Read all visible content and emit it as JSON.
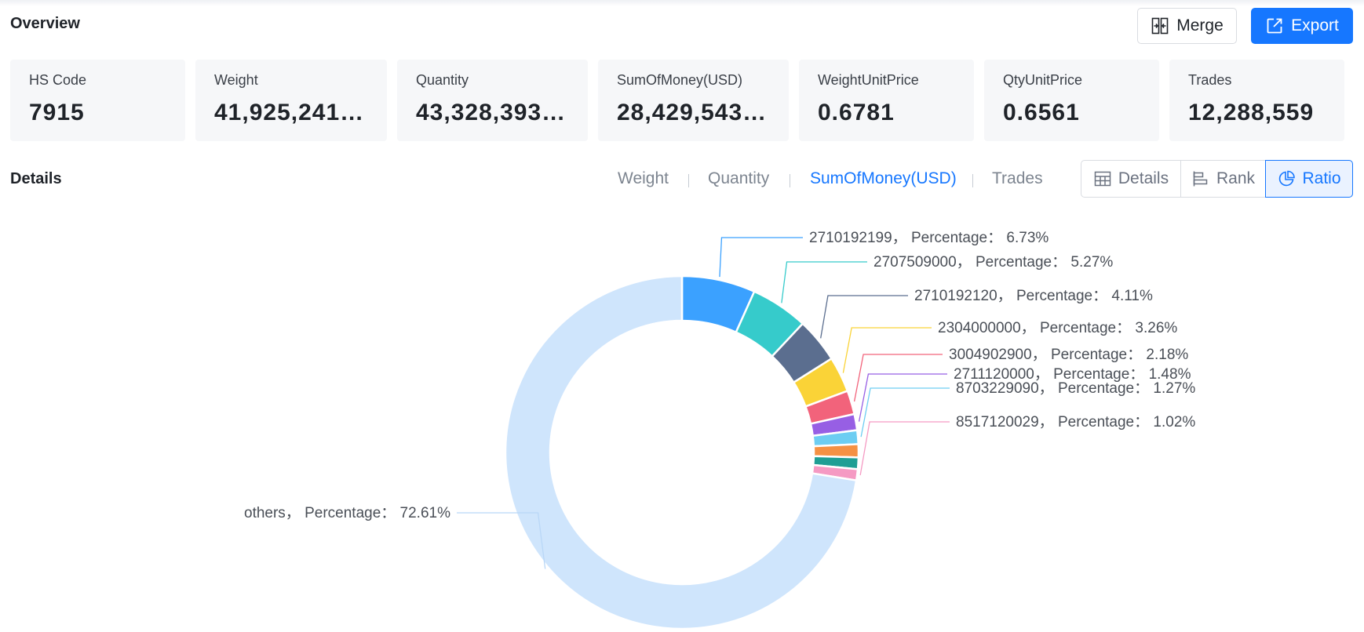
{
  "overview": {
    "title": "Overview"
  },
  "toolbar": {
    "merge_label": "Merge",
    "export_label": "Export"
  },
  "stats": [
    {
      "label": "HS Code",
      "value": "7915"
    },
    {
      "label": "Weight",
      "value": "41,925,241,..."
    },
    {
      "label": "Quantity",
      "value": "43,328,393,..."
    },
    {
      "label": "SumOfMoney(USD)",
      "value": "28,429,543,..."
    },
    {
      "label": "WeightUnitPrice",
      "value": "0.6781"
    },
    {
      "label": "QtyUnitPrice",
      "value": "0.6561"
    },
    {
      "label": "Trades",
      "value": "12,288,559"
    }
  ],
  "details": {
    "title": "Details",
    "metric_tabs": [
      "Weight",
      "Quantity",
      "SumOfMoney(USD)",
      "Trades"
    ],
    "active_metric": "SumOfMoney(USD)",
    "views": [
      {
        "label": "Details",
        "icon": "table-icon"
      },
      {
        "label": "Rank",
        "icon": "bar-rank-icon"
      },
      {
        "label": "Ratio",
        "icon": "pie-chart-icon"
      }
    ],
    "active_view": "Ratio"
  },
  "chart_data": {
    "type": "pie",
    "donut": true,
    "label_separator": "，",
    "percentage_label": "Percentage",
    "label_colon": "：",
    "slices": [
      {
        "name": "2710192199",
        "value": 6.73,
        "label": "6.73%",
        "color": "#3ba1ff",
        "labeled": true
      },
      {
        "name": "2707509000",
        "value": 5.27,
        "label": "5.27%",
        "color": "#36cbcb",
        "labeled": true
      },
      {
        "name": "2710192120",
        "value": 4.11,
        "label": "4.11%",
        "color": "#5b6e8f",
        "labeled": true
      },
      {
        "name": "2304000000",
        "value": 3.26,
        "label": "3.26%",
        "color": "#fad337",
        "labeled": true
      },
      {
        "name": "3004902900",
        "value": 2.18,
        "label": "2.18%",
        "color": "#f2637b",
        "labeled": true
      },
      {
        "name": "2711120000",
        "value": 1.48,
        "label": "1.48%",
        "color": "#975fe4",
        "labeled": true
      },
      {
        "name": "8703229090",
        "value": 1.27,
        "label": "1.27%",
        "color": "#6dcdf2",
        "labeled": true
      },
      {
        "name": "",
        "value": 1.2,
        "label": "",
        "color": "#f59144",
        "labeled": false
      },
      {
        "name": "",
        "value": 1.07,
        "label": "",
        "color": "#1f9e94",
        "labeled": false
      },
      {
        "name": "8517120029",
        "value": 1.02,
        "label": "1.02%",
        "color": "#f59ac3",
        "labeled": true
      },
      {
        "name": "others",
        "value": 72.61,
        "label": "72.61%",
        "color": "#cfe5fc",
        "labeled": true
      }
    ]
  }
}
